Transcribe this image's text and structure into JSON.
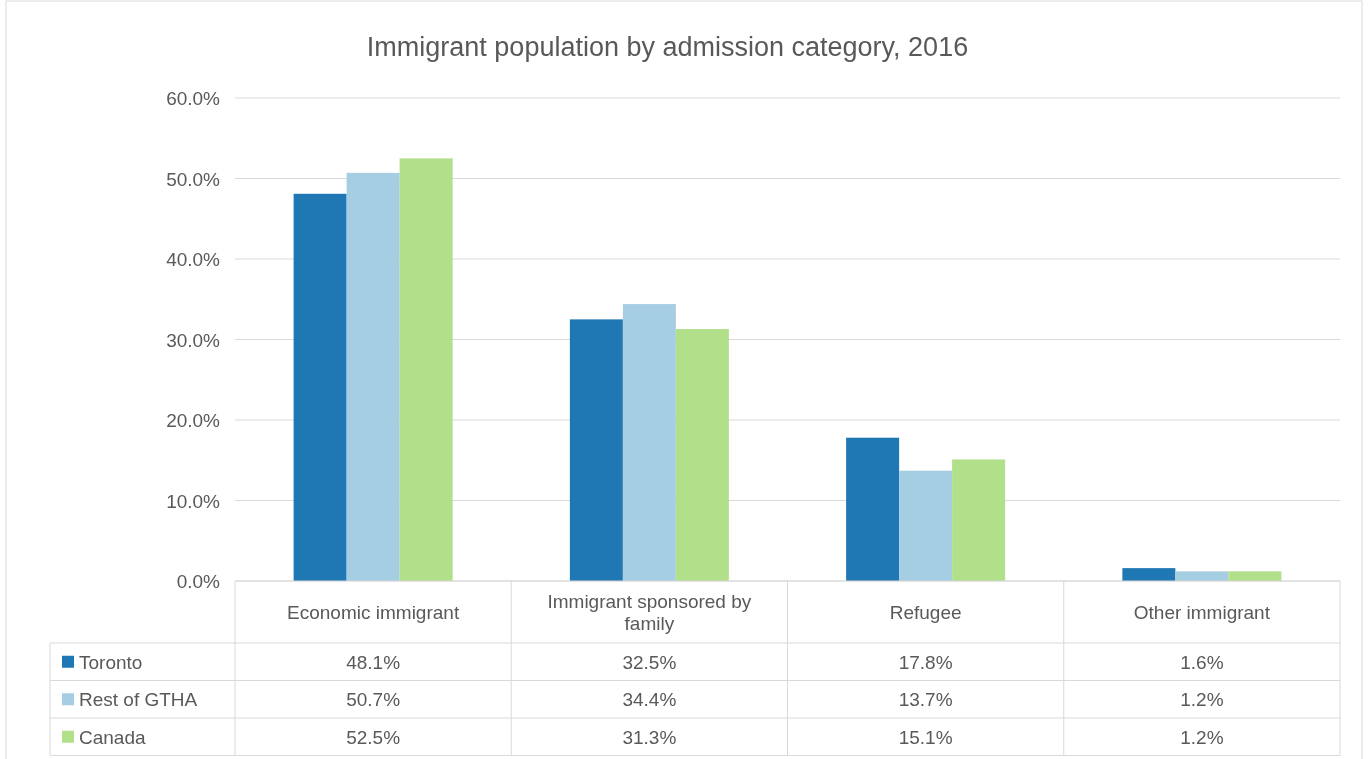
{
  "chart_data": {
    "type": "bar",
    "title": "Immigrant population by admission category, 2016",
    "categories": [
      "Economic immigrant",
      "Immigrant sponsored by family",
      "Refugee",
      "Other immigrant"
    ],
    "series": [
      {
        "name": "Toronto",
        "color": "#1f77b4",
        "values": [
          48.1,
          32.5,
          17.8,
          1.6
        ],
        "value_labels": [
          "48.1%",
          "32.5%",
          "17.8%",
          "1.6%"
        ]
      },
      {
        "name": "Rest of GTHA",
        "color": "#a6cee3",
        "values": [
          50.7,
          34.4,
          13.7,
          1.2
        ],
        "value_labels": [
          "50.7%",
          "34.4%",
          "13.7%",
          "1.2%"
        ]
      },
      {
        "name": "Canada",
        "color": "#b2df8a",
        "values": [
          52.5,
          31.3,
          15.1,
          1.2
        ],
        "value_labels": [
          "52.5%",
          "31.3%",
          "15.1%",
          "1.2%"
        ]
      }
    ],
    "ylim": [
      0,
      60
    ],
    "yticks": [
      {
        "value": 0,
        "label": "0.0%"
      },
      {
        "value": 10,
        "label": "10.0%"
      },
      {
        "value": 20,
        "label": "20.0%"
      },
      {
        "value": 30,
        "label": "30.0%"
      },
      {
        "value": 40,
        "label": "40.0%"
      },
      {
        "value": 50,
        "label": "50.0%"
      },
      {
        "value": 60,
        "label": "60.0%"
      }
    ],
    "grid": "y",
    "legend": "bottom"
  }
}
